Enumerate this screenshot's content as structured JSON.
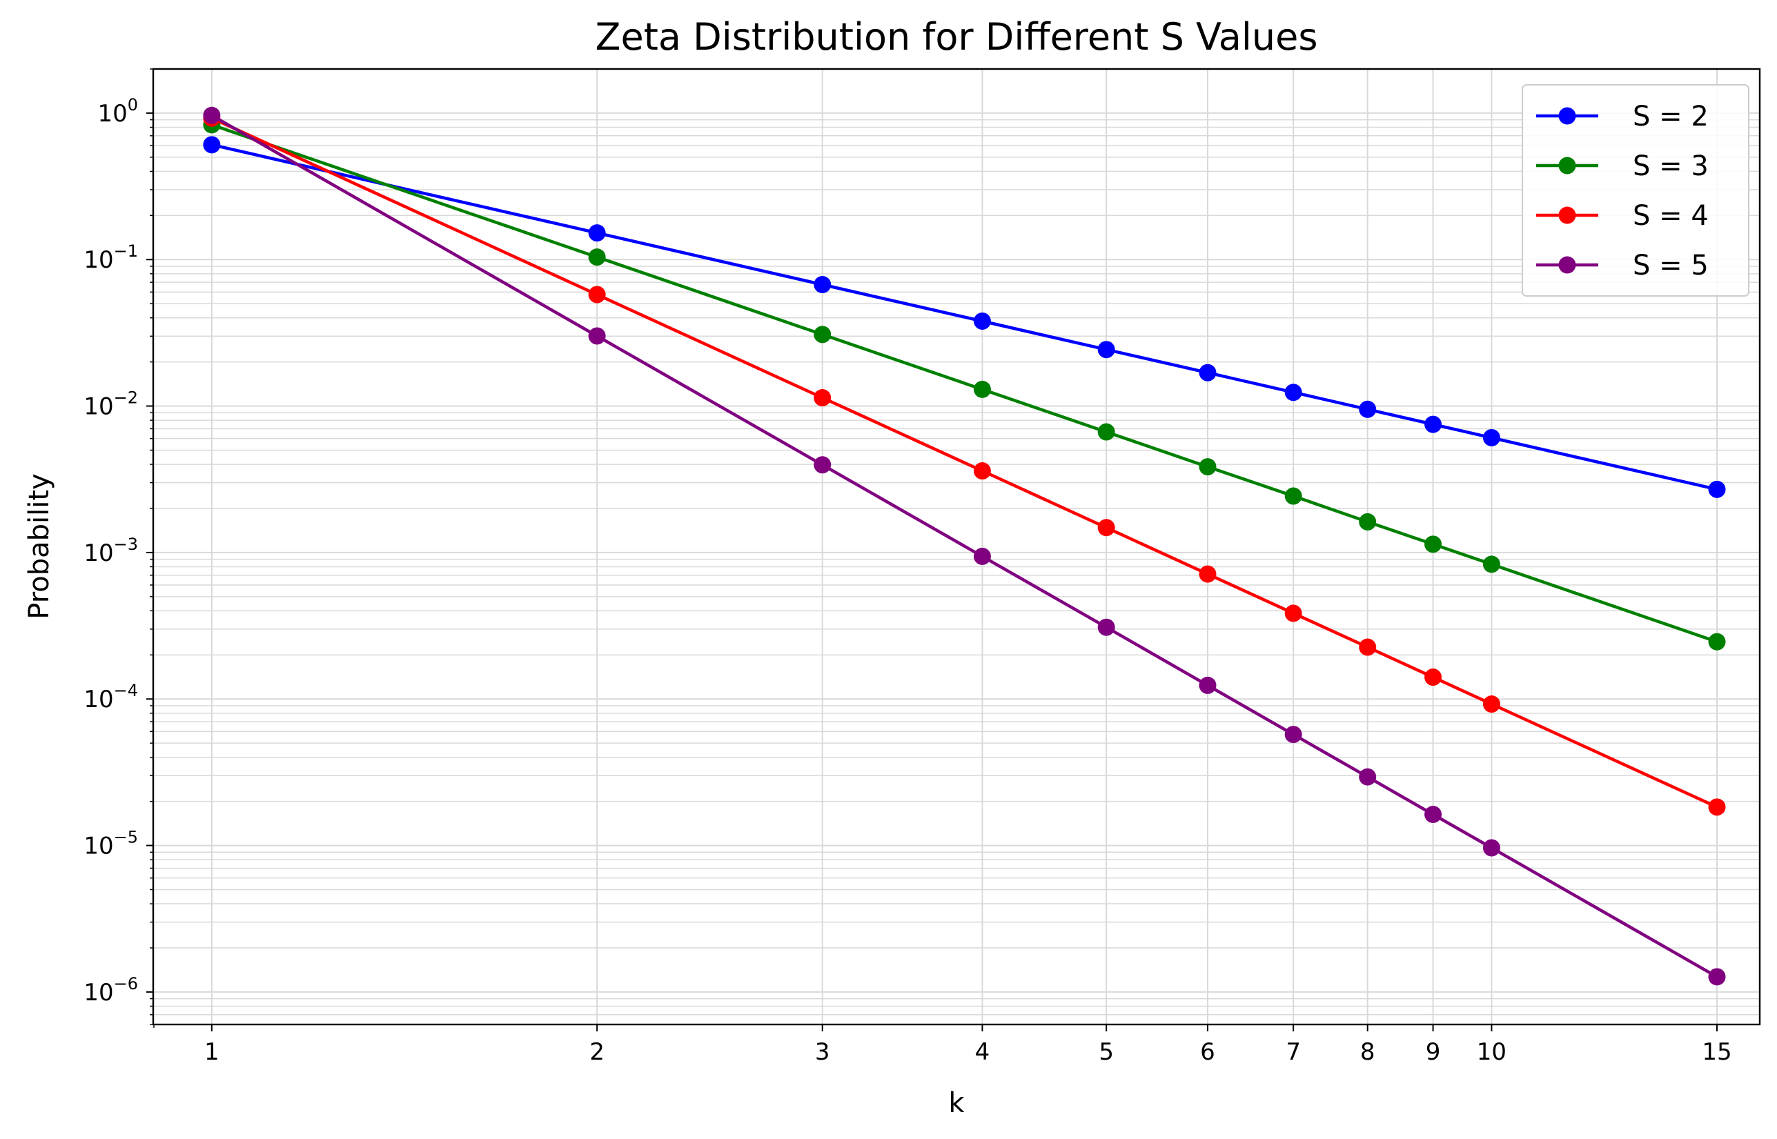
{
  "chart_data": {
    "type": "line",
    "title": "Zeta Distribution for Different S Values",
    "xlabel": "k",
    "ylabel": "Probability",
    "xscale": "log",
    "yscale": "log",
    "xlim": [
      0.9,
      16.2
    ],
    "ylim": [
      6e-07,
      2
    ],
    "grid": "on (major and minor)",
    "legend_position": "top-right",
    "x": [
      1,
      2,
      3,
      4,
      5,
      6,
      7,
      8,
      9,
      10,
      15
    ],
    "x_ticks": [
      1,
      2,
      3,
      4,
      5,
      6,
      7,
      8,
      9,
      10,
      15
    ],
    "y_ticks": [
      {
        "value": 1,
        "base": "10",
        "exp": "0"
      },
      {
        "value": 0.1,
        "base": "10",
        "exp": "−1"
      },
      {
        "value": 0.01,
        "base": "10",
        "exp": "−2"
      },
      {
        "value": 0.001,
        "base": "10",
        "exp": "−3"
      },
      {
        "value": 0.0001,
        "base": "10",
        "exp": "−4"
      },
      {
        "value": 1e-05,
        "base": "10",
        "exp": "−5"
      },
      {
        "value": 1e-06,
        "base": "10",
        "exp": "−6"
      }
    ],
    "series": [
      {
        "name": "S = 2",
        "color": "#0000ff",
        "values": [
          0.6079,
          0.152,
          0.0675,
          0.038,
          0.0243,
          0.0169,
          0.0124,
          0.0095,
          0.0075,
          0.00608,
          0.0027
        ]
      },
      {
        "name": "S = 3",
        "color": "#008000",
        "values": [
          0.8319,
          0.104,
          0.0308,
          0.013,
          0.00666,
          0.00385,
          0.00243,
          0.00162,
          0.00114,
          0.000832,
          0.000246
        ]
      },
      {
        "name": "S = 4",
        "color": "#ff0000",
        "values": [
          0.9239,
          0.0577,
          0.0114,
          0.00361,
          0.00148,
          0.000713,
          0.000385,
          0.000226,
          0.000141,
          9.24e-05,
          1.83e-05
        ]
      },
      {
        "name": "S = 5",
        "color": "#800080",
        "values": [
          0.9644,
          0.0301,
          0.00397,
          0.000942,
          0.000309,
          0.000124,
          5.73e-05,
          2.94e-05,
          1.63e-05,
          9.64e-06,
          1.27e-06
        ]
      }
    ]
  }
}
